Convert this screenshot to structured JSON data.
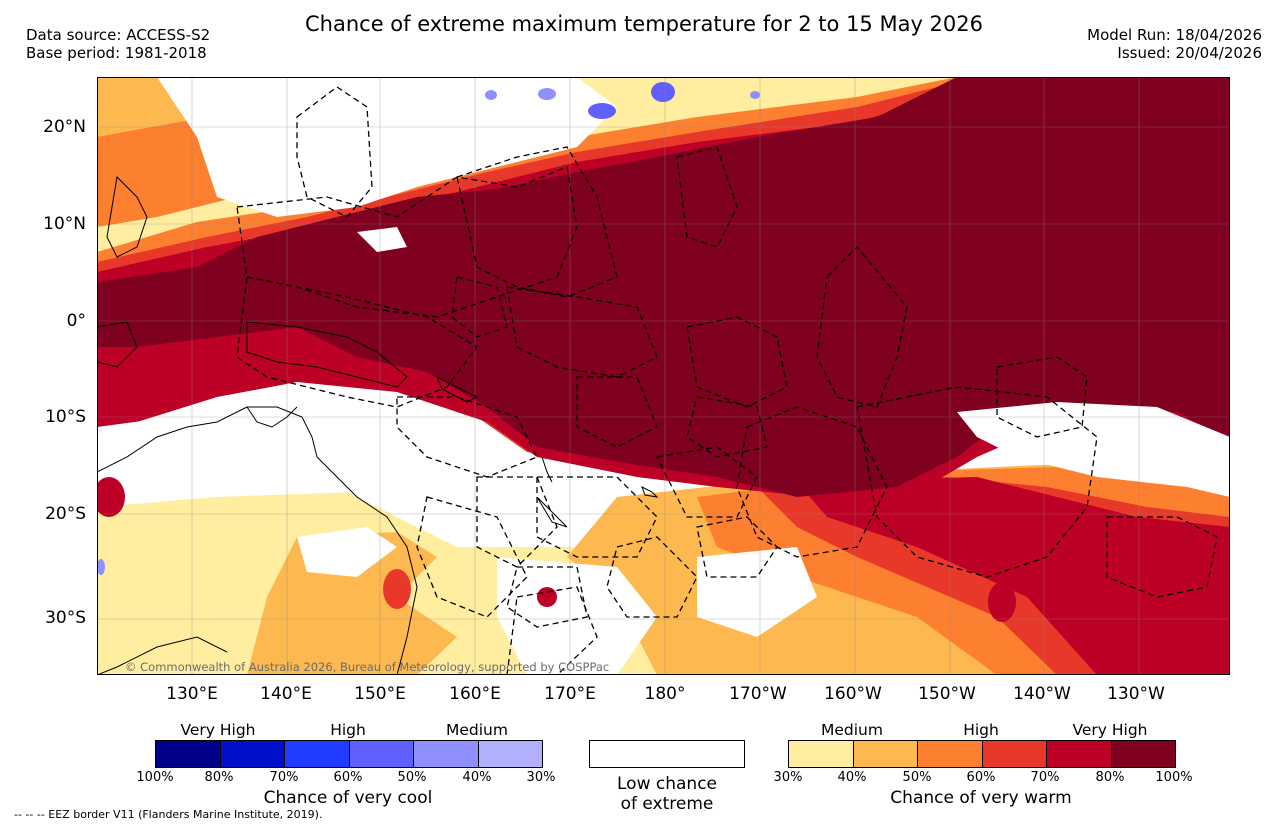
{
  "header": {
    "title": "Chance of extreme maximum temperature for 2 to 15 May 2026",
    "data_source": "Data source: ACCESS-S2",
    "base_period": "Base period: 1981-2018",
    "model_run": "Model Run: 18/04/2026",
    "issued": "Issued: 20/04/2026"
  },
  "map": {
    "lat_labels": [
      "20°N",
      "10°N",
      "0°",
      "10°S",
      "20°S",
      "30°S"
    ],
    "lon_labels": [
      "130°E",
      "140°E",
      "150°E",
      "160°E",
      "170°E",
      "180°",
      "170°W",
      "160°W",
      "150°W",
      "140°W",
      "130°W"
    ],
    "copyright": "© Commonwealth of Australia 2026, Bureau of Meteorology, supported by COSPPac"
  },
  "legend": {
    "cool": {
      "title": "Chance of very cool",
      "categories": [
        "Very High",
        "High",
        "Medium"
      ],
      "ticks": [
        "100%",
        "80%",
        "70%",
        "60%",
        "50%",
        "40%",
        "30%"
      ],
      "colors": [
        "#00008b",
        "#0011cc",
        "#1f3cff",
        "#6060ff",
        "#8f8fff",
        "#b0b0ff"
      ]
    },
    "low": {
      "line1": "Low chance",
      "line2": "of extreme"
    },
    "warm": {
      "title": "Chance of very warm",
      "categories": [
        "Medium",
        "High",
        "Very High"
      ],
      "ticks": [
        "30%",
        "40%",
        "50%",
        "60%",
        "70%",
        "80%",
        "100%"
      ],
      "colors": [
        "#ffeda0",
        "#fdb94f",
        "#fd7f30",
        "#e8382a",
        "#bd0026",
        "#800020"
      ]
    }
  },
  "footer": {
    "eez": "--  --  -- EEZ border V11 (Flanders Marine Institute, 2019)."
  }
}
